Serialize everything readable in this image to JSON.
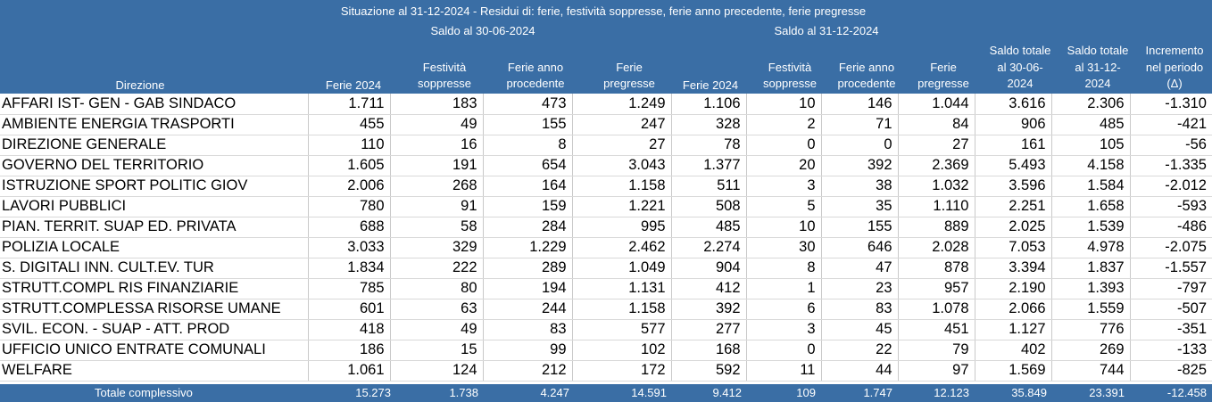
{
  "header": {
    "title": "Situazione al 31-12-2024 - Residui di: ferie, festività soppresse, ferie anno precedente, ferie pregresse",
    "group1": "Saldo al 30-06-2024",
    "group2": "Saldo al 31-12-2024",
    "col_direzione": "Direzione",
    "c1": [
      "Ferie 2024"
    ],
    "c2": [
      "Festività",
      "soppresse"
    ],
    "c3": [
      "Ferie anno",
      "procedente"
    ],
    "c4": [
      "Ferie",
      "pregresse"
    ],
    "c5": [
      "Ferie 2024"
    ],
    "c6": [
      "Festività",
      "soppresse"
    ],
    "c7": [
      "Ferie anno",
      "procedente"
    ],
    "c8": [
      "Ferie",
      "pregresse"
    ],
    "c9": [
      "Saldo totale",
      "al 30-06-",
      "2024"
    ],
    "c10": [
      "Saldo totale",
      "al 31-12-",
      "2024"
    ],
    "c11": [
      "Incremento",
      "nel periodo",
      "(Δ)"
    ]
  },
  "rows": [
    [
      "AFFARI IST- GEN - GAB SINDACO",
      "1.711",
      "183",
      "473",
      "1.249",
      "1.106",
      "10",
      "146",
      "1.044",
      "3.616",
      "2.306",
      "-1.310"
    ],
    [
      "AMBIENTE ENERGIA TRASPORTI",
      "455",
      "49",
      "155",
      "247",
      "328",
      "2",
      "71",
      "84",
      "906",
      "485",
      "-421"
    ],
    [
      "DIREZIONE GENERALE",
      "110",
      "16",
      "8",
      "27",
      "78",
      "0",
      "0",
      "27",
      "161",
      "105",
      "-56"
    ],
    [
      "GOVERNO DEL TERRITORIO",
      "1.605",
      "191",
      "654",
      "3.043",
      "1.377",
      "20",
      "392",
      "2.369",
      "5.493",
      "4.158",
      "-1.335"
    ],
    [
      "ISTRUZIONE  SPORT POLITIC GIOV",
      "2.006",
      "268",
      "164",
      "1.158",
      "511",
      "3",
      "38",
      "1.032",
      "3.596",
      "1.584",
      "-2.012"
    ],
    [
      "LAVORI PUBBLICI",
      "780",
      "91",
      "159",
      "1.221",
      "508",
      "5",
      "35",
      "1.110",
      "2.251",
      "1.658",
      "-593"
    ],
    [
      "PIAN. TERRIT. SUAP ED. PRIVATA",
      "688",
      "58",
      "284",
      "995",
      "485",
      "10",
      "155",
      "889",
      "2.025",
      "1.539",
      "-486"
    ],
    [
      "POLIZIA LOCALE",
      "3.033",
      "329",
      "1.229",
      "2.462",
      "2.274",
      "30",
      "646",
      "2.028",
      "7.053",
      "4.978",
      "-2.075"
    ],
    [
      "S. DIGITALI  INN. CULT.EV. TUR",
      "1.834",
      "222",
      "289",
      "1.049",
      "904",
      "8",
      "47",
      "878",
      "3.394",
      "1.837",
      "-1.557"
    ],
    [
      "STRUTT.COMPL RIS FINANZIARIE",
      "785",
      "80",
      "194",
      "1.131",
      "412",
      "1",
      "23",
      "957",
      "2.190",
      "1.393",
      "-797"
    ],
    [
      "STRUTT.COMPLESSA RISORSE UMANE",
      "601",
      "63",
      "244",
      "1.158",
      "392",
      "6",
      "83",
      "1.078",
      "2.066",
      "1.559",
      "-507"
    ],
    [
      "SVIL. ECON. - SUAP - ATT. PROD",
      "418",
      "49",
      "83",
      "577",
      "277",
      "3",
      "45",
      "451",
      "1.127",
      "776",
      "-351"
    ],
    [
      "UFFICIO UNICO ENTRATE COMUNALI",
      "186",
      "15",
      "99",
      "102",
      "168",
      "0",
      "22",
      "79",
      "402",
      "269",
      "-133"
    ],
    [
      "WELFARE",
      "1.061",
      "124",
      "212",
      "172",
      "592",
      "11",
      "44",
      "97",
      "1.569",
      "744",
      "-825"
    ]
  ],
  "total": {
    "label": "Totale complessivo",
    "values": [
      "15.273",
      "1.738",
      "4.247",
      "14.591",
      "9.412",
      "109",
      "1.747",
      "12.123",
      "35.849",
      "23.391",
      "-12.458"
    ]
  }
}
